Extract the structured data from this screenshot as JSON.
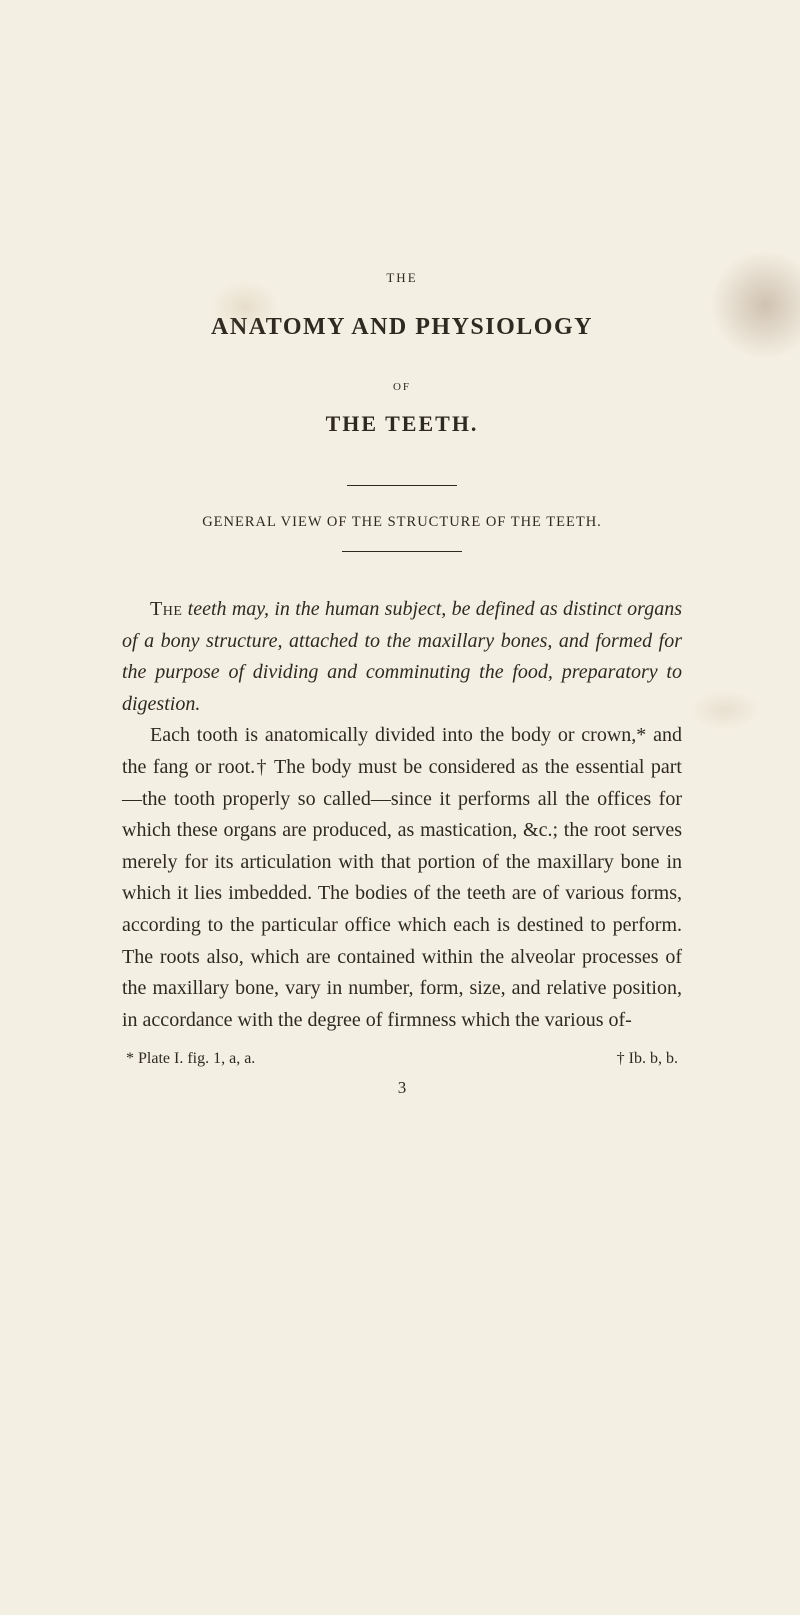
{
  "header": {
    "the": "THE",
    "title": "ANATOMY AND PHYSIOLOGY",
    "of": "OF",
    "subject": "THE TEETH."
  },
  "subhead": "GENERAL VIEW OF THE STRUCTURE OF THE TEETH.",
  "paragraphs": {
    "p1_lead": "The",
    "p1_rest": " teeth may, in the human subject, be defined as distinct organs of a bony structure, attached to the maxillary bones, and formed for the purpose of dividing and comminuting the food, preparatory to digestion.",
    "p2": "Each tooth is anatomically divided into the body or crown,* and the fang or root.† The body must be considered as the essential part—the tooth properly so called—since it performs all the offices for which these organs are produced, as mastication, &c.; the root serves merely for its articulation with that portion of the maxillary bone in which it lies imbedded. The bodies of the teeth are of various forms, according to the particular office which each is destined to perform. The roots also, which are contained within the alveolar processes of the maxillary bone, vary in number, form, size, and relative position, in accordance with the degree of firmness which the various of-"
  },
  "footnotes": {
    "left": "* Plate I. fig. 1, a, a.",
    "right": "† Ib. b, b."
  },
  "pagenum": "3"
}
